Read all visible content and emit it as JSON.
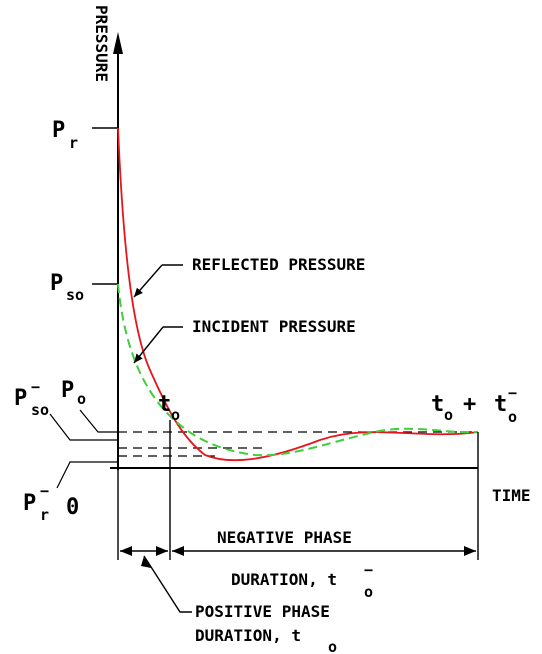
{
  "axes": {
    "y_label": "PRESSURE",
    "x_label": "TIME",
    "zero": "0"
  },
  "pressures": {
    "p_r": {
      "base": "P",
      "sub": "r"
    },
    "p_so": {
      "base": "P",
      "sub": "so"
    },
    "p_o": {
      "base": "P",
      "sub": "o"
    },
    "p_so_neg": {
      "base": "P",
      "sub": "so",
      "sup": "−"
    },
    "p_r_neg": {
      "base": "P",
      "sub": "r",
      "sup": "−"
    }
  },
  "times": {
    "t_o": {
      "base": "t",
      "sub": "o"
    },
    "t_o_plus": {
      "base1": "t",
      "sub1": "o",
      "op": "+",
      "base2": "t",
      "sub2": "o",
      "sup2": "−"
    }
  },
  "curves": {
    "reflected": {
      "label": "REFLECTED PRESSURE",
      "color": "#e8141c"
    },
    "incident": {
      "label": "INCIDENT PRESSURE",
      "color": "#3fcf3a"
    }
  },
  "durations": {
    "negative_line1": "NEGATIVE PHASE",
    "negative_line2": "DURATION, t",
    "negative_sub": "o",
    "negative_sup": "−",
    "positive_line1": "POSITIVE PHASE",
    "positive_line2": "DURATION, t",
    "positive_sub": "o"
  }
}
